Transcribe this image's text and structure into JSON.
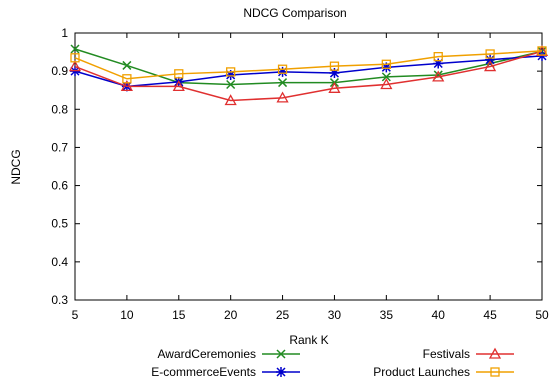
{
  "chart_data": {
    "type": "line",
    "title": "NDCG Comparison",
    "xlabel": "Rank K",
    "ylabel": "NDCG",
    "x": [
      5,
      10,
      15,
      20,
      25,
      30,
      35,
      40,
      45,
      50
    ],
    "xticks": [
      "5",
      "10",
      "15",
      "20",
      "25",
      "30",
      "35",
      "40",
      "45",
      "50"
    ],
    "yticks": [
      "0.3",
      "0.4",
      "0.5",
      "0.6",
      "0.7",
      "0.8",
      "0.9",
      "1"
    ],
    "xlim": [
      5,
      50
    ],
    "ylim": [
      0.3,
      1.0
    ],
    "grid": false,
    "legend_position": "bottom",
    "series": [
      {
        "name": "AwardCeremonies",
        "color": "#228b22",
        "marker": "x",
        "values": [
          0.958,
          0.915,
          0.87,
          0.865,
          0.87,
          0.87,
          0.885,
          0.89,
          0.92,
          0.952
        ]
      },
      {
        "name": "E-commerceEvents",
        "color": "#0000cc",
        "marker": "star",
        "values": [
          0.9,
          0.86,
          0.872,
          0.89,
          0.898,
          0.895,
          0.91,
          0.92,
          0.93,
          0.94
        ]
      },
      {
        "name": "Festivals",
        "color": "#e03030",
        "marker": "triangle",
        "values": [
          0.912,
          0.86,
          0.86,
          0.823,
          0.83,
          0.855,
          0.865,
          0.885,
          0.912,
          0.952
        ]
      },
      {
        "name": "Product Launches",
        "color": "#f0a000",
        "marker": "square",
        "values": [
          0.935,
          0.88,
          0.893,
          0.898,
          0.905,
          0.913,
          0.918,
          0.938,
          0.945,
          0.953
        ]
      }
    ]
  }
}
